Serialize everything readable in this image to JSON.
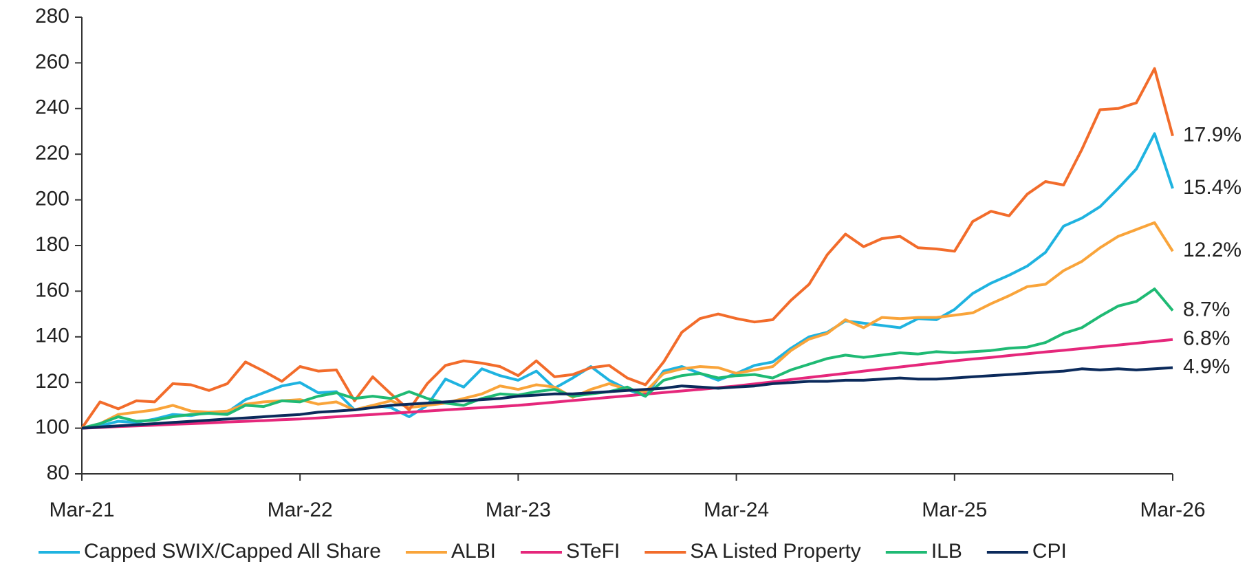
{
  "chart_data": {
    "type": "line",
    "categories": [
      "Mar-21",
      null,
      null,
      null,
      null,
      null,
      null,
      null,
      null,
      null,
      null,
      null,
      "Mar-22",
      null,
      null,
      null,
      null,
      null,
      null,
      null,
      null,
      null,
      null,
      null,
      "Mar-23",
      null,
      null,
      null,
      null,
      null,
      null,
      null,
      null,
      null,
      null,
      null,
      "Mar-24",
      null,
      null,
      null,
      null,
      null,
      null,
      null,
      null,
      null,
      null,
      null,
      "Mar-25",
      null,
      null,
      null,
      null,
      null,
      null,
      null,
      null,
      null,
      null,
      null,
      "Mar-26"
    ],
    "ylim": [
      80,
      280
    ],
    "yticks": [
      80,
      100,
      120,
      140,
      160,
      180,
      200,
      220,
      240,
      260,
      280
    ],
    "grid": false,
    "legend": "bottom",
    "series": [
      {
        "name": "Capped SWIX/Capped All Share",
        "color": "#1fb3e0",
        "end_label": "15.4%",
        "values": [
          100,
          101,
          103,
          102.5,
          104,
          106,
          105.5,
          107,
          107,
          112.5,
          115.5,
          118.5,
          120,
          115.5,
          116,
          108,
          110,
          109,
          105,
          110,
          121.5,
          118,
          126,
          123,
          121,
          125,
          117.5,
          122,
          127,
          121,
          117,
          114,
          125,
          127,
          124,
          121,
          124,
          127.5,
          129,
          135,
          140,
          142,
          147,
          146,
          145,
          144,
          148,
          147.5,
          152,
          159,
          163.5,
          167,
          171,
          177,
          188.5,
          192,
          197,
          205,
          213.5,
          229,
          205
        ]
      },
      {
        "name": "ALBI",
        "color": "#f9a43a",
        "end_label": "12.2%",
        "values": [
          100,
          102,
          106,
          107,
          108,
          110,
          107.5,
          107,
          107.5,
          110.5,
          111.5,
          112,
          112.5,
          110.5,
          111.5,
          108,
          110,
          112,
          109,
          110,
          111,
          113,
          115,
          118.5,
          117,
          119,
          118,
          113.5,
          117,
          119.5,
          117,
          116,
          124,
          126,
          127,
          126.5,
          124,
          125.5,
          127,
          134,
          139,
          141.5,
          147.5,
          144,
          148.5,
          148,
          148.5,
          148.5,
          149.5,
          150.5,
          154.5,
          158,
          162,
          163,
          169,
          173,
          179,
          184,
          187,
          190,
          177.5
        ]
      },
      {
        "name": "STeFI",
        "color": "#e5277b",
        "end_label": "6.8%",
        "values": [
          100,
          100.3,
          100.7,
          101,
          101.3,
          101.7,
          102,
          102.3,
          102.7,
          103,
          103.3,
          103.7,
          104,
          104.5,
          105,
          105.5,
          106,
          106.5,
          107,
          107.5,
          108,
          108.5,
          109,
          109.5,
          110,
          110.7,
          111.4,
          112.1,
          112.8,
          113.5,
          114.2,
          114.9,
          115.6,
          116.3,
          117,
          117.7,
          118.5,
          119.4,
          120.3,
          121.3,
          122.2,
          123.1,
          124,
          125,
          125.9,
          126.8,
          127.7,
          128.6,
          129.5,
          130.3,
          131,
          131.8,
          132.6,
          133.4,
          134.1,
          134.9,
          135.7,
          136.4,
          137.2,
          138,
          138.8
        ]
      },
      {
        "name": "SA Listed Property",
        "color": "#f26c2b",
        "end_label": "17.9%",
        "values": [
          100,
          111.5,
          108.5,
          112,
          111.5,
          119.5,
          119,
          116.5,
          119.5,
          129,
          125,
          120.5,
          127,
          125,
          125.5,
          112,
          122.5,
          115,
          108,
          119.5,
          127.5,
          129.5,
          128.5,
          127,
          123,
          129.5,
          122.5,
          123.5,
          126.5,
          127.5,
          122,
          119,
          129,
          142,
          148,
          150,
          148,
          146.5,
          147.5,
          156,
          163,
          176,
          185,
          179.5,
          183,
          184,
          179,
          178.5,
          177.5,
          190.5,
          195,
          193,
          202.5,
          208,
          206.5,
          222,
          239.5,
          240,
          242.5,
          257.5,
          228
        ]
      },
      {
        "name": "ILB",
        "color": "#1fba74",
        "end_label": "8.7%",
        "values": [
          100,
          102,
          105,
          103,
          103.5,
          105,
          106,
          106.5,
          106,
          110,
          109.5,
          112,
          111.5,
          114,
          115.5,
          113,
          114,
          113,
          116,
          113,
          111,
          110,
          113,
          115,
          114.5,
          116,
          117,
          114,
          115,
          116,
          118,
          114,
          121,
          123,
          124,
          122,
          123,
          123.5,
          122,
          125.5,
          128,
          130.5,
          132,
          131,
          132,
          133,
          132.5,
          133.5,
          133,
          133.5,
          134,
          135,
          135.5,
          137.5,
          141.5,
          144,
          149,
          153.5,
          155.5,
          161,
          151.5
        ]
      },
      {
        "name": "CPI",
        "color": "#0b2a5b",
        "end_label": "4.9%",
        "values": [
          100,
          100.5,
          101,
          101.5,
          102,
          102.5,
          103,
          103.5,
          104,
          104.5,
          105,
          105.5,
          106,
          107,
          107.5,
          108,
          109,
          110,
          110.5,
          111,
          111.5,
          112,
          112.5,
          113,
          114,
          114.5,
          115,
          115,
          115.5,
          116,
          116.5,
          117,
          117.5,
          118.5,
          118,
          117.5,
          118,
          118.5,
          119.5,
          120,
          120.5,
          120.5,
          121,
          121,
          121.5,
          122,
          121.5,
          121.5,
          122,
          122.5,
          123,
          123.5,
          124,
          124.5,
          125,
          126,
          125.5,
          126,
          125.5,
          126,
          126.5
        ]
      }
    ]
  }
}
